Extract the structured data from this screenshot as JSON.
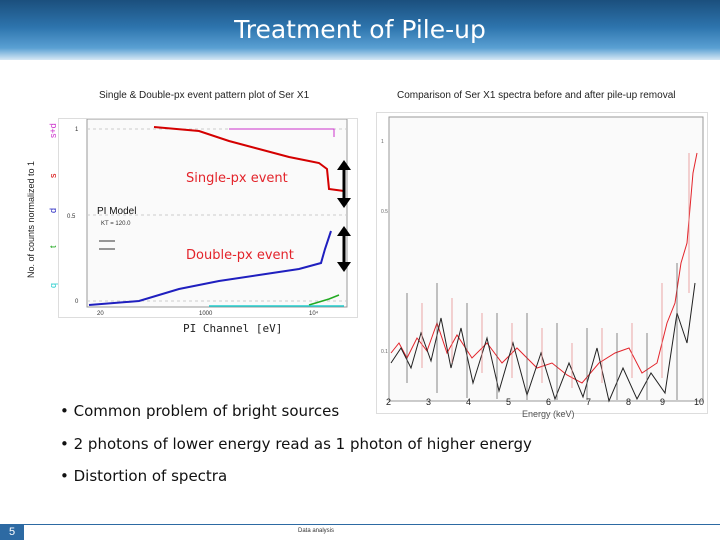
{
  "slide": {
    "title": "Treatment of Pile-up",
    "left_caption": "Single & Double-px event pattern plot of Ser X1",
    "right_caption": "Comparison of Ser X1 spectra before and after pile-up removal",
    "overlay_single": "Single-px event",
    "overlay_double": "Double-px event",
    "left_xlabel": "PI Channel [eV]",
    "left_ylabel": "No. of counts normalized to 1",
    "left_legend_title": "PI Model",
    "left_legend_sub": "KT = 120.0",
    "right_xlabel": "Energy (keV)",
    "right_ticks": [
      "2",
      "3",
      "4",
      "5",
      "6",
      "7",
      "8",
      "9",
      "10"
    ],
    "bullets": [
      "Common problem of bright sources",
      "2 photons of lower energy read as 1 photon of higher energy",
      "Distortion of spectra"
    ],
    "slide_number": "5",
    "footer": "Data analysis"
  },
  "colors": {
    "title_bar": "#2d74ad",
    "accent_red": "#e3242b",
    "single_red": "#d40000",
    "double_blue": "#1f1fbf",
    "magenta": "#cc33cc",
    "green": "#22aa22",
    "cyan": "#22cccc"
  }
}
